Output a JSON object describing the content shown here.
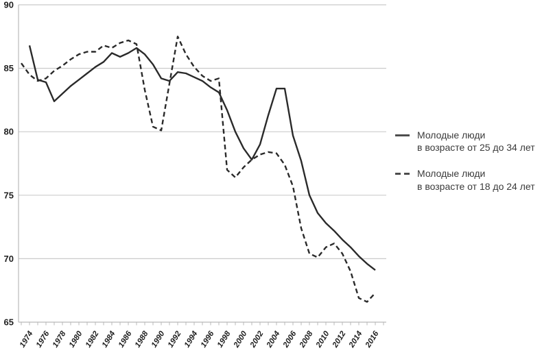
{
  "legend": {
    "series_25_34": {
      "line1": "Молодые люди",
      "line2": "в возрасте от 25 до 34 лет"
    },
    "series_18_24": {
      "line1": "Молодые люди",
      "line2": "в возрасте от 18 до 24 лет"
    }
  },
  "colors": {
    "background": "#ffffff",
    "line": "#2a2a2a",
    "grid": "#cbcbcb",
    "axis": "#b9b9b9",
    "tick_label": "#1f1f1f",
    "legend_text": "#3a3a3a",
    "legend_marker": "#4d4d4d"
  },
  "chart_data": {
    "type": "line",
    "title": "",
    "xlabel": "",
    "ylabel": "",
    "ylim": [
      65,
      90
    ],
    "yticks": [
      65,
      70,
      75,
      80,
      85,
      90
    ],
    "xtick_labels": [
      "1974",
      "1976",
      "1978",
      "1980",
      "1982",
      "1984",
      "1986",
      "1988",
      "1990",
      "1992",
      "1994",
      "1996",
      "1998",
      "2000",
      "2002",
      "2004",
      "2006",
      "2008",
      "2010",
      "2012",
      "2014",
      "2016"
    ],
    "grid": "horizontal",
    "legend_position": "right",
    "series": [
      {
        "name": "Молодые люди в возрасте от 25 до 34 лет",
        "style": "solid",
        "x": [
          1974,
          1975,
          1976,
          1977,
          1978,
          1979,
          1980,
          1981,
          1982,
          1983,
          1984,
          1985,
          1986,
          1987,
          1988,
          1989,
          1990,
          1991,
          1992,
          1993,
          1994,
          1995,
          1996,
          1997,
          1998,
          1999,
          2000,
          2001,
          2002,
          2003,
          2004,
          2005,
          2006,
          2007,
          2008,
          2009,
          2010,
          2011,
          2012,
          2013,
          2014,
          2015,
          2016
        ],
        "values": [
          86.8,
          84.1,
          83.9,
          82.4,
          83.0,
          83.6,
          84.1,
          84.6,
          85.1,
          85.5,
          86.2,
          85.9,
          86.2,
          86.6,
          86.1,
          85.3,
          84.2,
          84.0,
          84.7,
          84.6,
          84.3,
          84.0,
          83.5,
          83.1,
          81.7,
          80.0,
          78.7,
          77.8,
          79.0,
          81.3,
          83.4,
          83.4,
          79.7,
          77.7,
          75.0,
          73.6,
          72.8,
          72.2,
          71.5,
          70.9,
          70.2,
          69.6,
          69.1
        ]
      },
      {
        "name": "Молодые люди в возрасте от 18 до 24 лет",
        "style": "dashed",
        "x": [
          1973,
          1974,
          1975,
          1976,
          1977,
          1978,
          1979,
          1980,
          1981,
          1982,
          1983,
          1984,
          1985,
          1986,
          1987,
          1988,
          1989,
          1990,
          1991,
          1992,
          1993,
          1994,
          1995,
          1996,
          1997,
          1998,
          1999,
          2000,
          2001,
          2002,
          2003,
          2004,
          2005,
          2006,
          2007,
          2008,
          2009,
          2010,
          2011,
          2012,
          2013,
          2014,
          2015,
          2016
        ],
        "values": [
          85.4,
          84.5,
          84.0,
          84.2,
          84.8,
          85.2,
          85.7,
          86.1,
          86.3,
          86.3,
          86.8,
          86.6,
          87.0,
          87.2,
          86.9,
          83.3,
          80.4,
          80.1,
          83.8,
          87.5,
          86.1,
          85.1,
          84.4,
          84.0,
          84.2,
          77.0,
          76.4,
          77.2,
          77.8,
          78.2,
          78.4,
          78.3,
          77.4,
          75.7,
          72.4,
          70.4,
          70.1,
          70.9,
          71.2,
          70.4,
          69.0,
          66.9,
          66.6,
          67.3
        ]
      }
    ]
  }
}
